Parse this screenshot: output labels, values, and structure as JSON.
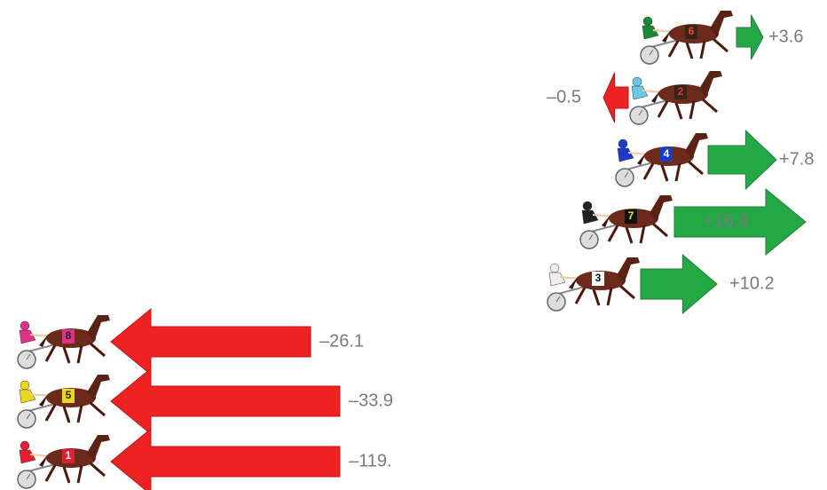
{
  "entries": [
    {
      "number": "6",
      "change": "+3.6"
    },
    {
      "number": "2",
      "change": "–0.5"
    },
    {
      "number": "4",
      "change": "+7.8"
    },
    {
      "number": "7",
      "change": "+16.9"
    },
    {
      "number": "3",
      "change": "+10.2"
    },
    {
      "number": "8",
      "change": "–26.1"
    },
    {
      "number": "5",
      "change": "–33.9"
    },
    {
      "number": "1",
      "change": "–119."
    }
  ]
}
